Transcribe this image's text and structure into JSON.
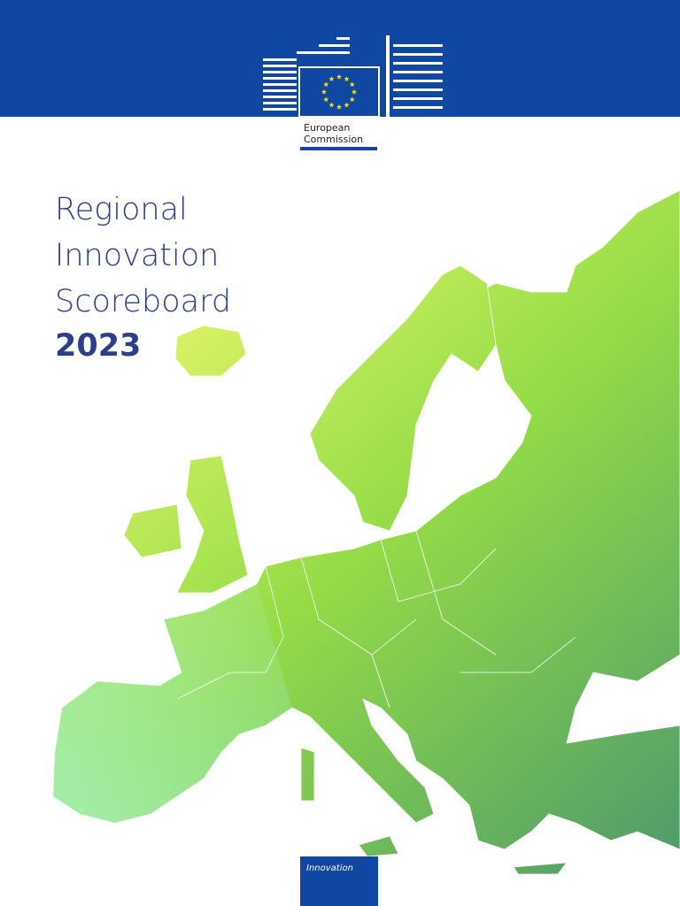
{
  "header": {
    "logo": {
      "line1": "European",
      "line2": "Commission"
    }
  },
  "title": {
    "lines": [
      "Regional",
      "Innovation",
      "Scoreboard"
    ],
    "year": "2023"
  },
  "footer": {
    "tag": "Innovation"
  }
}
